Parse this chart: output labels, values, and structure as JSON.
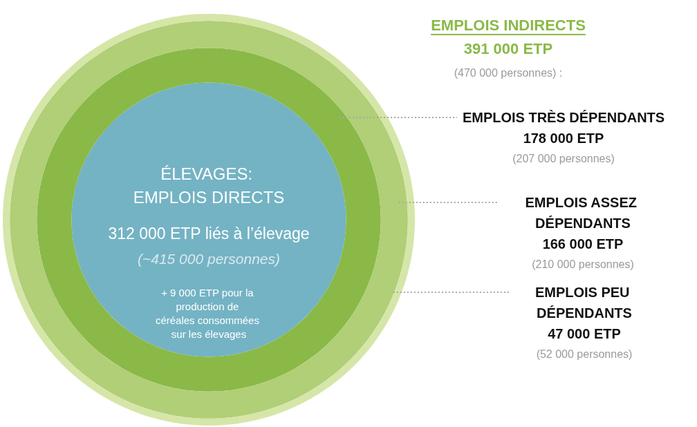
{
  "chart_data": {
    "type": "other",
    "title": "EMPLOIS INDIRECTS",
    "totals": [
      "391 000 ETP"
    ],
    "categories": [
      "ÉLEVAGES: EMPLOIS DIRECTS",
      "EMPLOIS TRÈS DÉPENDANTS",
      "EMPLOIS ASSEZ DÉPENDANTS",
      "EMPLOIS PEU DÉPENDANTS"
    ],
    "values": [
      312000,
      178000,
      166000,
      47000
    ],
    "value_labels": [
      "312 000 ETP liés à l’élevage",
      "178 000 ETP",
      "166 000 ETP",
      "47 000 ETP"
    ],
    "colors": [
      "#74b3c4",
      "#8ab948",
      "#b0cf76",
      "#d5e6a8"
    ],
    "annotations": [
      "(~415 000 personnes)",
      "(207 000 personnes)",
      "(210 000 personnes)",
      "(52 000 personnes)",
      "(470 000 personnes) :",
      "+ 9 000 ETP pour la production de céréales consommées sur les élevages"
    ]
  }
}
